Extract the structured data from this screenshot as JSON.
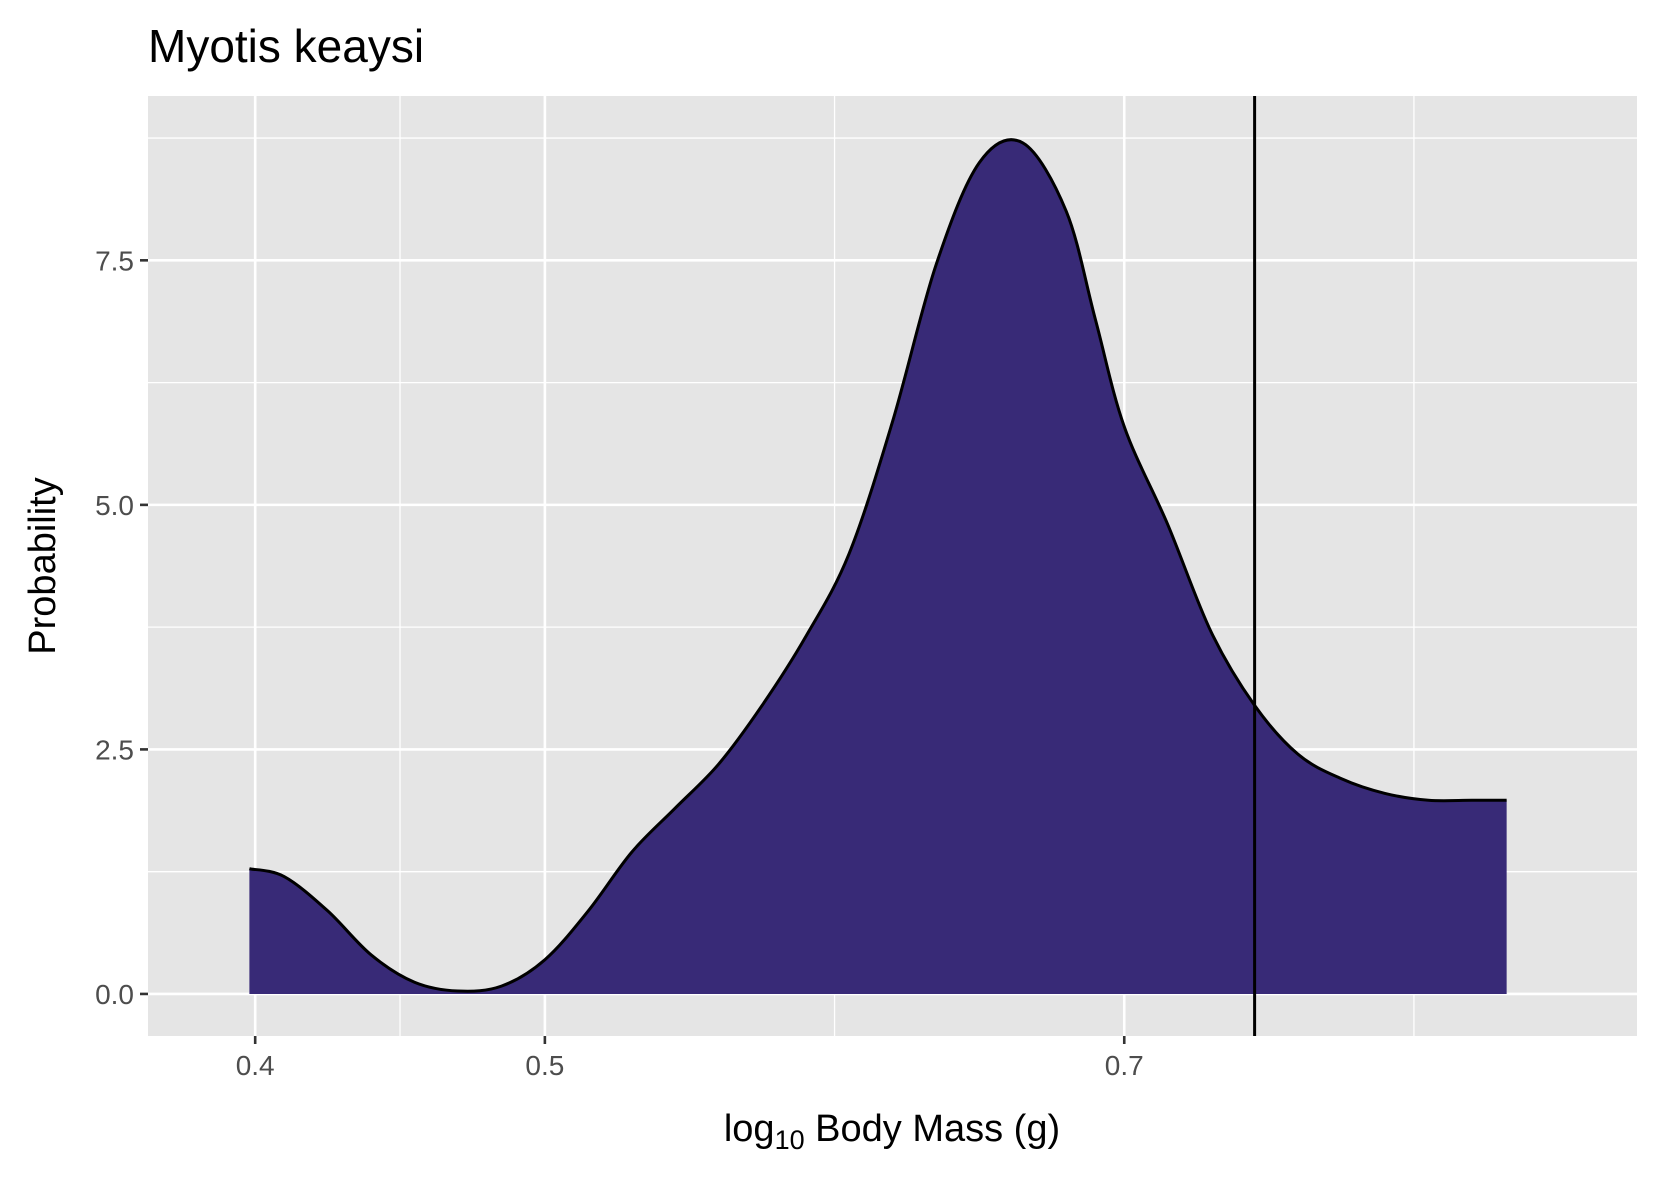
{
  "chart_data": {
    "type": "area",
    "title": "Myotis keaysi",
    "xlabel_main": "log",
    "xlabel_sub": "10",
    "xlabel_rest": " Body Mass (g)",
    "ylabel": "Probability",
    "xlim": [
      0.363,
      0.877
    ],
    "ylim": [
      -0.43,
      9.18
    ],
    "x_ticks": [
      0.4,
      0.5,
      0.7
    ],
    "x_tick_labels": [
      "0.4",
      "0.5",
      "0.7"
    ],
    "x_minor_gridlines": [
      0.45,
      0.6,
      0.8
    ],
    "y_ticks": [
      0.0,
      2.5,
      5.0,
      7.5
    ],
    "y_tick_labels": [
      "0.0",
      "2.5",
      "5.0",
      "7.5"
    ],
    "y_minor_gridlines": [
      1.25,
      3.75,
      6.25,
      8.75
    ],
    "grid": true,
    "vline_x": 0.745,
    "series": [
      {
        "x": [
          0.398,
          0.41,
          0.425,
          0.44,
          0.455,
          0.47,
          0.485,
          0.5,
          0.515,
          0.53,
          0.545,
          0.56,
          0.575,
          0.59,
          0.605,
          0.62,
          0.635,
          0.65,
          0.665,
          0.68,
          0.69,
          0.7,
          0.715,
          0.73,
          0.745,
          0.76,
          0.775,
          0.79,
          0.805,
          0.82,
          0.832
        ],
        "y": [
          1.28,
          1.2,
          0.85,
          0.4,
          0.12,
          0.03,
          0.08,
          0.35,
          0.85,
          1.45,
          1.9,
          2.35,
          2.95,
          3.65,
          4.5,
          5.85,
          7.45,
          8.5,
          8.7,
          8.0,
          6.9,
          5.8,
          4.8,
          3.7,
          2.95,
          2.45,
          2.2,
          2.05,
          1.98,
          1.98,
          1.98
        ]
      }
    ],
    "colors": {
      "panel_background": "#e5e5e5",
      "grid": "#ffffff",
      "fill": "#382a77",
      "line": "#000000",
      "tick_text": "#4d4d4d"
    }
  }
}
